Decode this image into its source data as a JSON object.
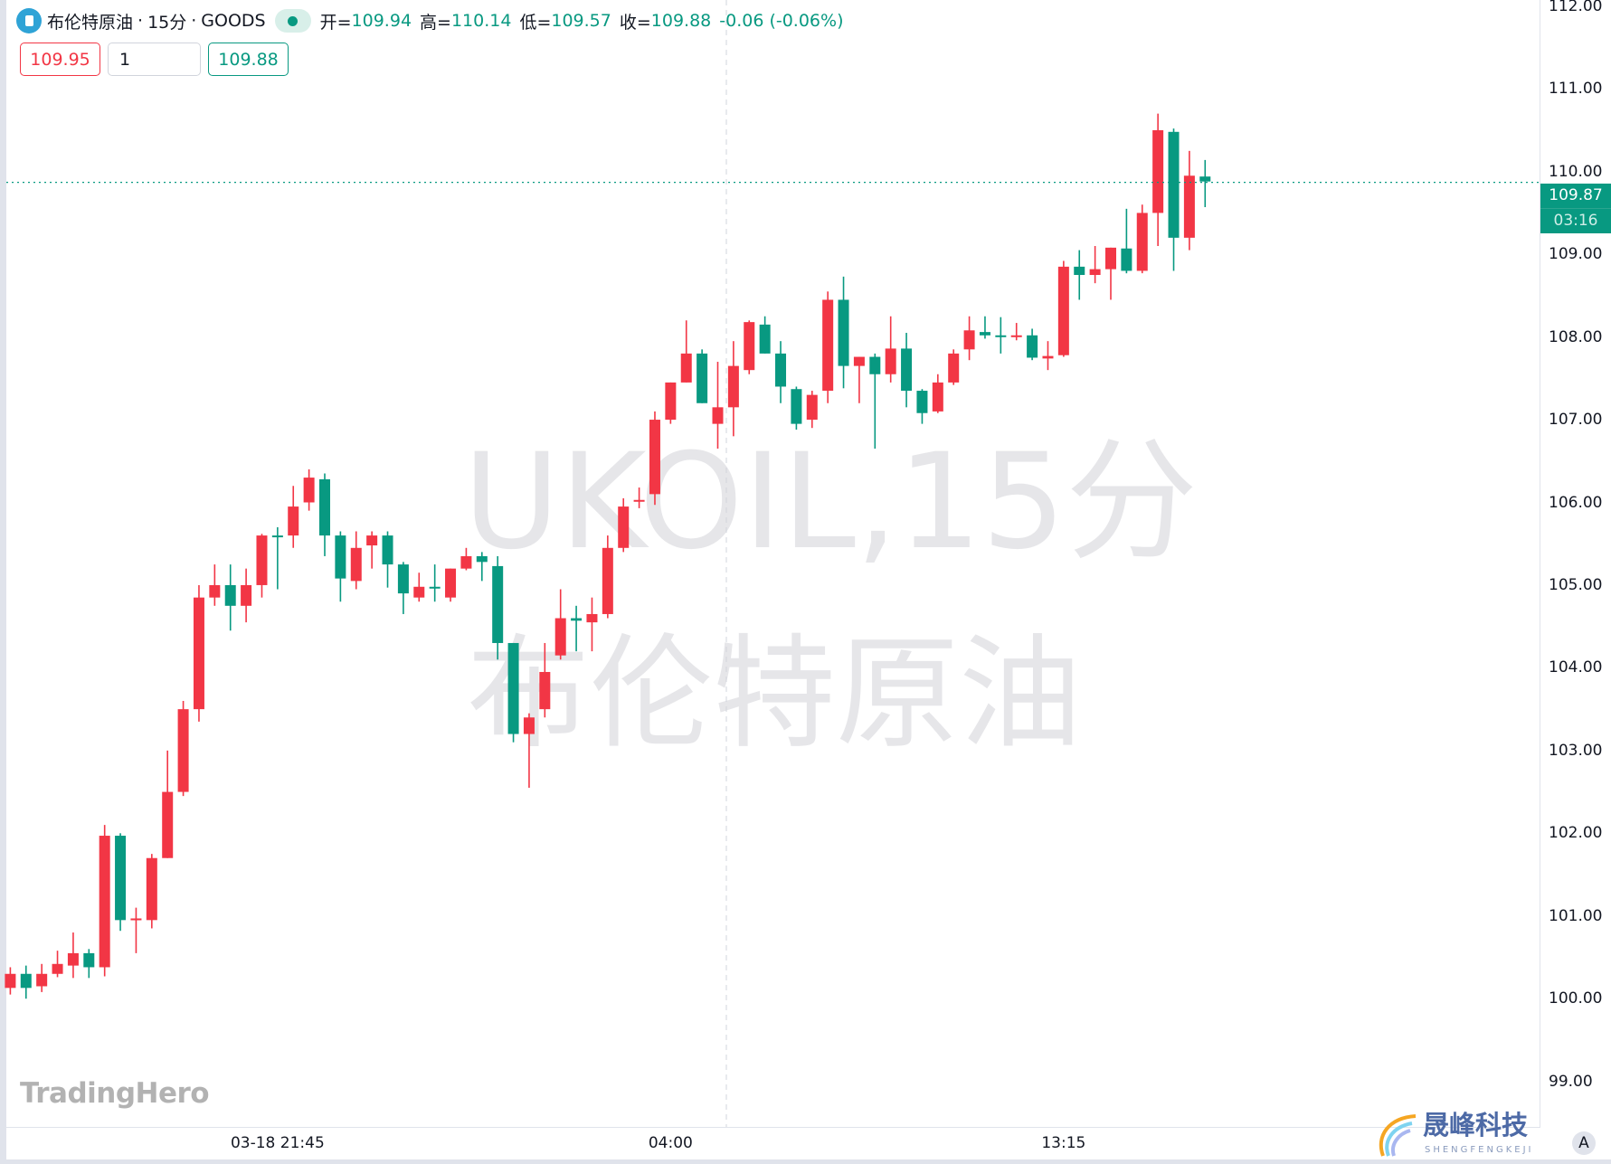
{
  "header": {
    "symbol_name": "布伦特原油",
    "interval": "15分",
    "exchange": "GOODS",
    "sep": "·",
    "open_label": "开=",
    "open": "109.94",
    "high_label": "高=",
    "high": "110.14",
    "low_label": "低=",
    "low": "109.57",
    "close_label": "收=",
    "close": "109.88",
    "change": "-0.06 (-0.06%)"
  },
  "order": {
    "sell_price": "109.95",
    "quantity": "1",
    "buy_price": "109.88"
  },
  "watermark": {
    "line1": "UKOIL,15分",
    "line2": "布伦特原油"
  },
  "price_label": {
    "price": "109.87",
    "countdown": "03:16"
  },
  "logo": {
    "tradinghero": "TradingHero",
    "brand": "晟峰科技",
    "brand_sub": "SHENGFENGKEJI"
  },
  "auto_scale": "A",
  "colors": {
    "up": "#f23645",
    "down": "#089981",
    "accent": "#089981"
  },
  "chart_data": {
    "type": "candlestick",
    "ylim": [
      99,
      112
    ],
    "y_ticks": [
      "112.00",
      "111.00",
      "110.00",
      "109.00",
      "108.00",
      "107.00",
      "106.00",
      "105.00",
      "104.00",
      "103.00",
      "102.00",
      "101.00",
      "100.00",
      "99.00"
    ],
    "x_ticks": [
      {
        "index": 17,
        "label": "03-18 21:45"
      },
      {
        "index": 42,
        "label": "04:00"
      },
      {
        "index": 67,
        "label": "13:15"
      }
    ],
    "last_price": 109.87,
    "ohlc": [
      [
        100.13,
        100.38,
        100.05,
        100.3
      ],
      [
        100.3,
        100.4,
        100.0,
        100.13
      ],
      [
        100.15,
        100.42,
        100.08,
        100.3
      ],
      [
        100.3,
        100.58,
        100.26,
        100.42
      ],
      [
        100.4,
        100.8,
        100.25,
        100.55
      ],
      [
        100.55,
        100.6,
        100.25,
        100.38
      ],
      [
        100.38,
        102.1,
        100.27,
        101.97
      ],
      [
        101.97,
        102.0,
        100.82,
        100.95
      ],
      [
        100.95,
        101.1,
        100.55,
        100.97
      ],
      [
        100.95,
        101.75,
        100.85,
        101.7
      ],
      [
        101.7,
        103.0,
        101.7,
        102.5
      ],
      [
        102.5,
        103.6,
        102.45,
        103.5
      ],
      [
        103.5,
        105.0,
        103.35,
        104.85
      ],
      [
        104.85,
        105.25,
        104.75,
        105.0
      ],
      [
        105.0,
        105.25,
        104.45,
        104.75
      ],
      [
        104.75,
        105.2,
        104.55,
        105.0
      ],
      [
        105.0,
        105.62,
        104.85,
        105.6
      ],
      [
        105.6,
        105.7,
        104.95,
        105.58
      ],
      [
        105.6,
        106.2,
        105.45,
        105.95
      ],
      [
        106.0,
        106.4,
        105.9,
        106.3
      ],
      [
        106.28,
        106.35,
        105.35,
        105.6
      ],
      [
        105.6,
        105.65,
        104.8,
        105.08
      ],
      [
        105.05,
        105.65,
        104.95,
        105.45
      ],
      [
        105.48,
        105.65,
        105.2,
        105.6
      ],
      [
        105.6,
        105.65,
        104.97,
        105.25
      ],
      [
        105.25,
        105.28,
        104.65,
        104.9
      ],
      [
        104.85,
        105.15,
        104.8,
        104.98
      ],
      [
        104.98,
        105.25,
        104.8,
        104.96
      ],
      [
        104.85,
        105.2,
        104.8,
        105.2
      ],
      [
        105.2,
        105.45,
        105.18,
        105.35
      ],
      [
        105.35,
        105.4,
        105.05,
        105.28
      ],
      [
        105.23,
        105.35,
        104.1,
        104.3
      ],
      [
        104.3,
        104.3,
        103.1,
        103.2
      ],
      [
        103.2,
        103.45,
        102.55,
        103.4
      ],
      [
        103.5,
        104.3,
        103.4,
        103.95
      ],
      [
        104.15,
        104.95,
        104.1,
        104.6
      ],
      [
        104.6,
        104.75,
        104.2,
        104.57
      ],
      [
        104.55,
        104.85,
        104.2,
        104.65
      ],
      [
        104.65,
        105.6,
        104.6,
        105.45
      ],
      [
        105.45,
        106.05,
        105.4,
        105.95
      ],
      [
        106.02,
        106.18,
        105.93,
        106.03
      ],
      [
        106.1,
        107.1,
        105.97,
        107.0
      ],
      [
        107.0,
        107.45,
        106.95,
        107.45
      ],
      [
        107.45,
        108.2,
        107.45,
        107.8
      ],
      [
        107.8,
        107.85,
        107.2,
        107.2
      ],
      [
        106.95,
        107.7,
        106.65,
        107.15
      ],
      [
        107.15,
        107.95,
        106.8,
        107.65
      ],
      [
        107.6,
        108.2,
        107.55,
        108.18
      ],
      [
        108.15,
        108.25,
        107.8,
        107.8
      ],
      [
        107.8,
        107.95,
        107.2,
        107.4
      ],
      [
        107.37,
        107.4,
        106.88,
        106.95
      ],
      [
        107.0,
        107.35,
        106.9,
        107.3
      ],
      [
        107.35,
        108.55,
        107.2,
        108.45
      ],
      [
        108.45,
        108.73,
        107.38,
        107.65
      ],
      [
        107.65,
        107.76,
        107.2,
        107.76
      ],
      [
        107.76,
        107.8,
        106.65,
        107.55
      ],
      [
        107.55,
        108.25,
        107.45,
        107.86
      ],
      [
        107.86,
        108.05,
        107.15,
        107.35
      ],
      [
        107.35,
        107.37,
        106.95,
        107.08
      ],
      [
        107.1,
        107.55,
        107.08,
        107.45
      ],
      [
        107.45,
        107.85,
        107.42,
        107.8
      ],
      [
        107.85,
        108.25,
        107.72,
        108.08
      ],
      [
        108.06,
        108.25,
        107.98,
        108.02
      ],
      [
        108.02,
        108.24,
        107.8,
        108.01
      ],
      [
        108.0,
        108.17,
        107.96,
        108.02
      ],
      [
        108.02,
        108.1,
        107.72,
        107.75
      ],
      [
        107.74,
        107.95,
        107.6,
        107.77
      ],
      [
        107.78,
        108.92,
        107.76,
        108.85
      ],
      [
        108.85,
        109.05,
        108.45,
        108.75
      ],
      [
        108.75,
        109.1,
        108.65,
        108.82
      ],
      [
        108.82,
        109.08,
        108.45,
        109.08
      ],
      [
        109.07,
        109.55,
        108.77,
        108.8
      ],
      [
        108.8,
        109.6,
        108.77,
        109.5
      ],
      [
        109.5,
        110.7,
        109.1,
        110.5
      ],
      [
        110.48,
        110.52,
        108.8,
        109.2
      ],
      [
        109.2,
        110.25,
        109.05,
        109.95
      ],
      [
        109.94,
        110.14,
        109.57,
        109.88
      ]
    ]
  }
}
